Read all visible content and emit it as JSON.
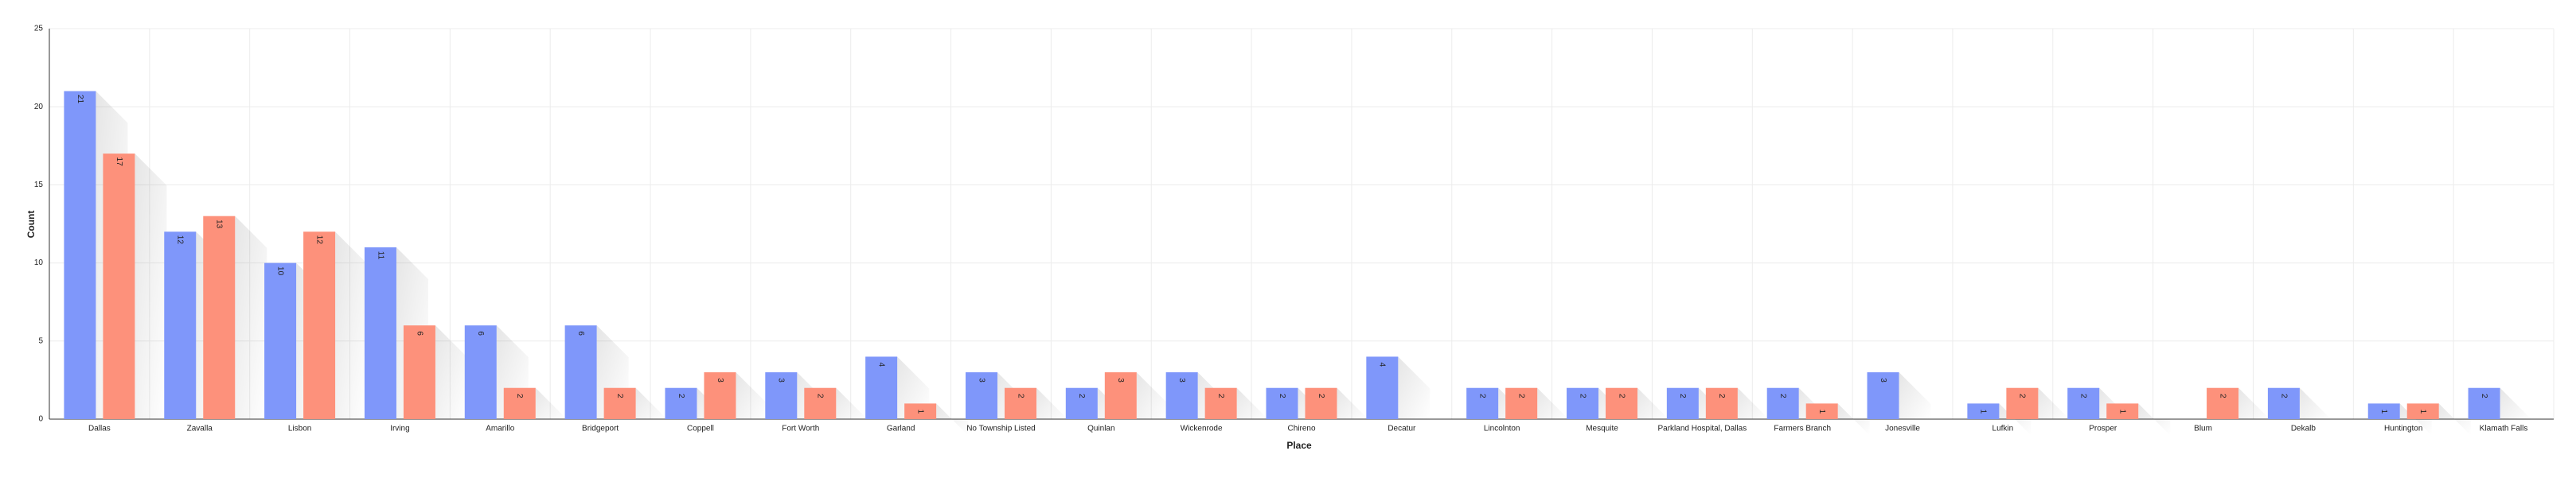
{
  "chart_data": {
    "type": "bar",
    "x_label": "Place",
    "y_label": "Count",
    "categories": [
      "Dallas",
      "Zavalla",
      "Lisbon",
      "Irving",
      "Amarillo",
      "Bridgeport",
      "Coppell",
      "Fort Worth",
      "Garland",
      "No Township Listed",
      "Quinlan",
      "Wickenrode",
      "Chireno",
      "Decatur",
      "Lincolnton",
      "Mesquite",
      "Parkland Hospital, Dallas",
      "Farmers Branch",
      "Jonesville",
      "Lufkin",
      "Prosper",
      "Blum",
      "Dekalb",
      "Huntington",
      "Klamath Falls"
    ],
    "series": [
      {
        "color": "#7f97fa",
        "values": [
          21,
          12,
          10,
          11,
          6,
          6,
          2,
          3,
          4,
          3,
          2,
          3,
          2,
          4,
          2,
          2,
          2,
          2,
          3,
          1,
          2,
          null,
          2,
          1,
          2
        ]
      },
      {
        "color": "#fd917b",
        "values": [
          17,
          13,
          12,
          6,
          2,
          2,
          3,
          2,
          1,
          2,
          3,
          2,
          2,
          null,
          2,
          2,
          2,
          1,
          null,
          2,
          1,
          2,
          null,
          1,
          null
        ]
      }
    ],
    "ylim": [
      0,
      25
    ],
    "yticks": [
      0,
      5,
      10,
      15,
      20,
      25
    ],
    "grid": true
  }
}
